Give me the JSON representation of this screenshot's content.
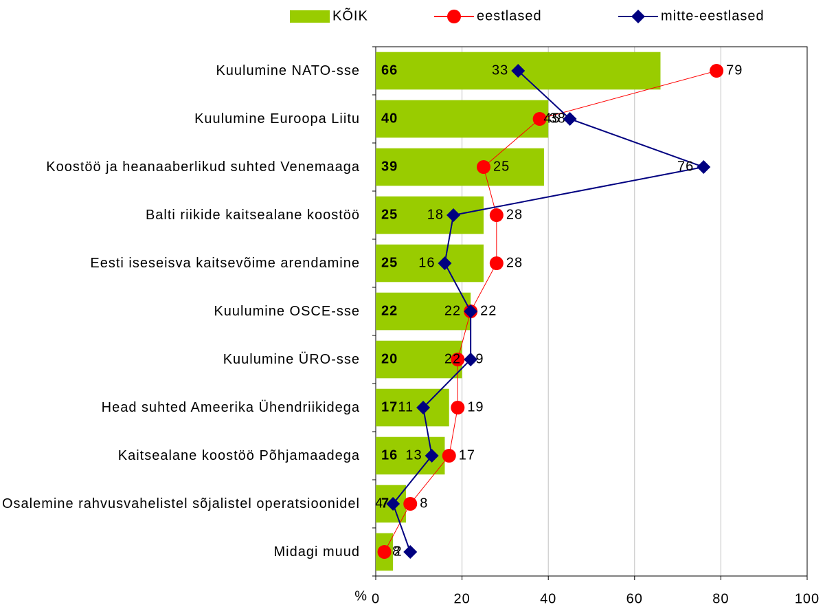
{
  "chart_data": {
    "type": "bar",
    "orientation": "horizontal",
    "categories": [
      "Kuulumine NATO-sse",
      "Kuulumine Euroopa Liitu",
      "Koostöö ja heanaaberlikud suhted Venemaaga",
      "Balti riikide kaitsealane koostöö",
      "Eesti iseseisva kaitsevõime arendamine",
      "Kuulumine OSCE-sse",
      "Kuulumine ÜRO-sse",
      "Head suhted Ameerika Ühendriikidega",
      "Kaitsealane koostöö Põhjamaadega",
      "Osalemine rahvusvahelistel sõjalistel operatsioonidel",
      "Midagi muud"
    ],
    "series": [
      {
        "name": "KÕIK",
        "type": "bar",
        "color": "#99cc00",
        "values": [
          66,
          40,
          39,
          25,
          25,
          22,
          20,
          17,
          16,
          7,
          4
        ]
      },
      {
        "name": "eestlased",
        "type": "line",
        "marker": "circle",
        "color": "#ff0000",
        "values": [
          79,
          38,
          25,
          28,
          28,
          22,
          19,
          19,
          17,
          8,
          2
        ]
      },
      {
        "name": "mitte-eestlased",
        "type": "line",
        "marker": "diamond",
        "color": "#000080",
        "values": [
          33,
          45,
          76,
          18,
          16,
          22,
          22,
          11,
          13,
          4,
          8
        ]
      }
    ],
    "xlabel": "%",
    "xlim": [
      0,
      100
    ],
    "xticks": [
      0,
      20,
      40,
      60,
      80,
      100
    ],
    "grid": true,
    "legend": "top"
  }
}
